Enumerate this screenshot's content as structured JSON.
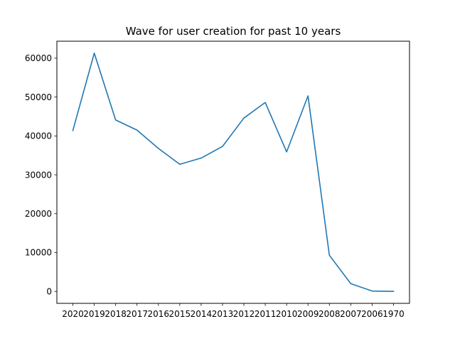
{
  "chart_data": {
    "type": "line",
    "title": "Wave for user creation for past 10 years",
    "xlabel": "",
    "ylabel": "",
    "categories": [
      "2020",
      "2019",
      "2018",
      "2017",
      "2016",
      "2015",
      "2014",
      "2013",
      "2012",
      "2011",
      "2010",
      "2009",
      "2008",
      "2007",
      "2006",
      "1970"
    ],
    "series": [
      {
        "values": [
          41400,
          61300,
          44100,
          41500,
          36800,
          32700,
          34300,
          37300,
          44600,
          48600,
          35900,
          50300,
          9300,
          2000,
          100,
          0
        ],
        "color": "#1f77b4"
      }
    ],
    "ylim": [
      -3070,
      64370
    ],
    "yticks": [
      0,
      10000,
      20000,
      30000,
      40000,
      50000,
      60000
    ],
    "grid": false,
    "legend": "none"
  }
}
